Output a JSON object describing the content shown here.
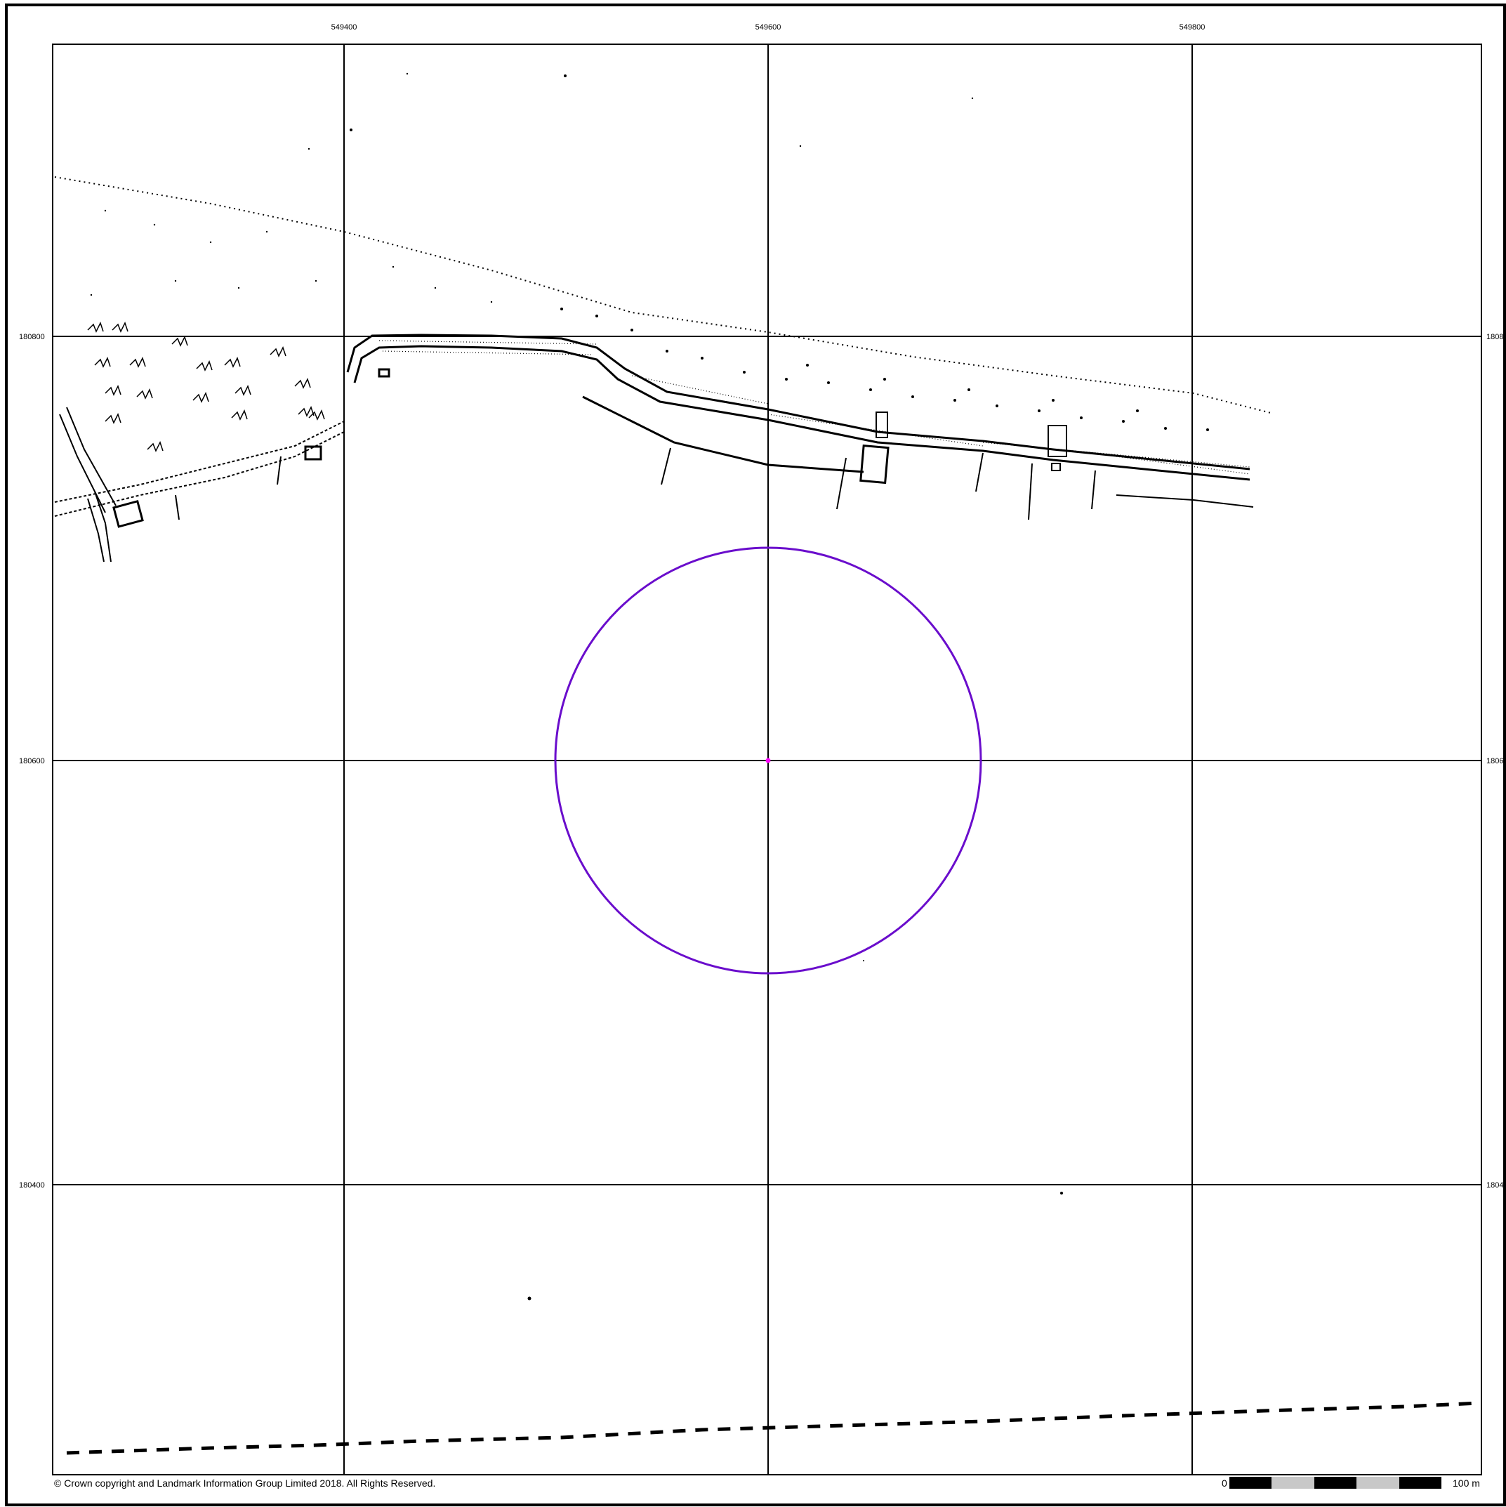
{
  "map": {
    "easting_labels": [
      "549400",
      "549600",
      "549800"
    ],
    "northing_labels": [
      "180800",
      "180600",
      "180400"
    ],
    "northing_labels_right": [
      "1808",
      "1806",
      "1804"
    ],
    "copyright": "© Crown copyright and Landmark Information Group Limited 2018.  All Rights Reserved.",
    "scale_bar": {
      "start_label": "0",
      "end_label": "100 m",
      "colors": [
        "#000000",
        "#c8c8c8"
      ]
    },
    "search_radius_color": "#6a0dcc",
    "site_point_color": "#ff00ff",
    "grid_color": "#000000"
  }
}
